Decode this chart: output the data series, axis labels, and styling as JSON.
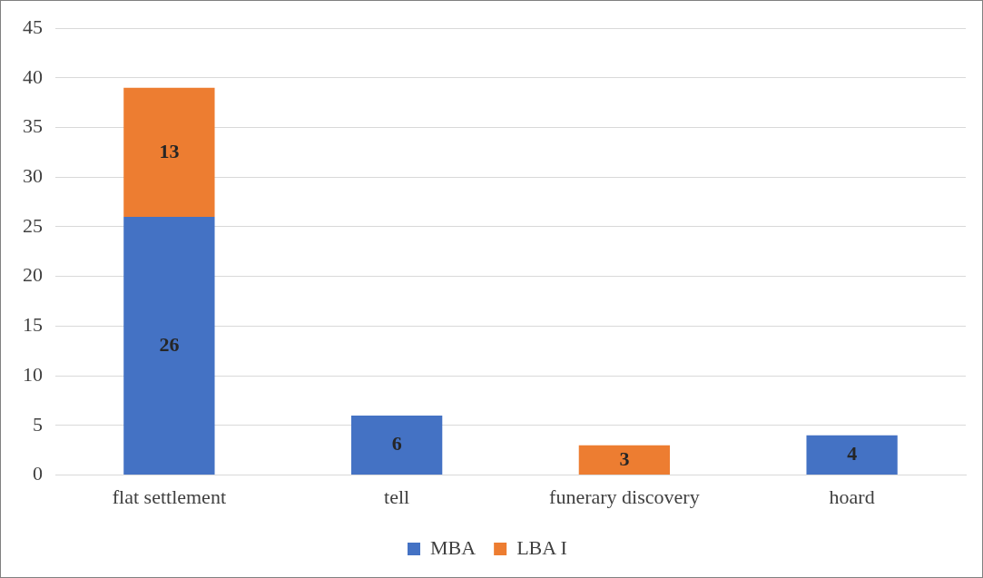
{
  "chart_data": {
    "type": "bar",
    "stacked": true,
    "categories": [
      "flat settlement",
      "tell",
      "funerary discovery",
      "hoard"
    ],
    "series": [
      {
        "name": "MBA",
        "color": "#4472c4",
        "values": [
          26,
          6,
          null,
          4
        ]
      },
      {
        "name": "LBA I",
        "color": "#ed7d31",
        "values": [
          13,
          null,
          3,
          null
        ]
      }
    ],
    "ylim": [
      0,
      45
    ],
    "yticks": [
      0,
      5,
      10,
      15,
      20,
      25,
      30,
      35,
      40,
      45
    ],
    "grid": "y",
    "legend": "bottom",
    "data_labels": true
  }
}
